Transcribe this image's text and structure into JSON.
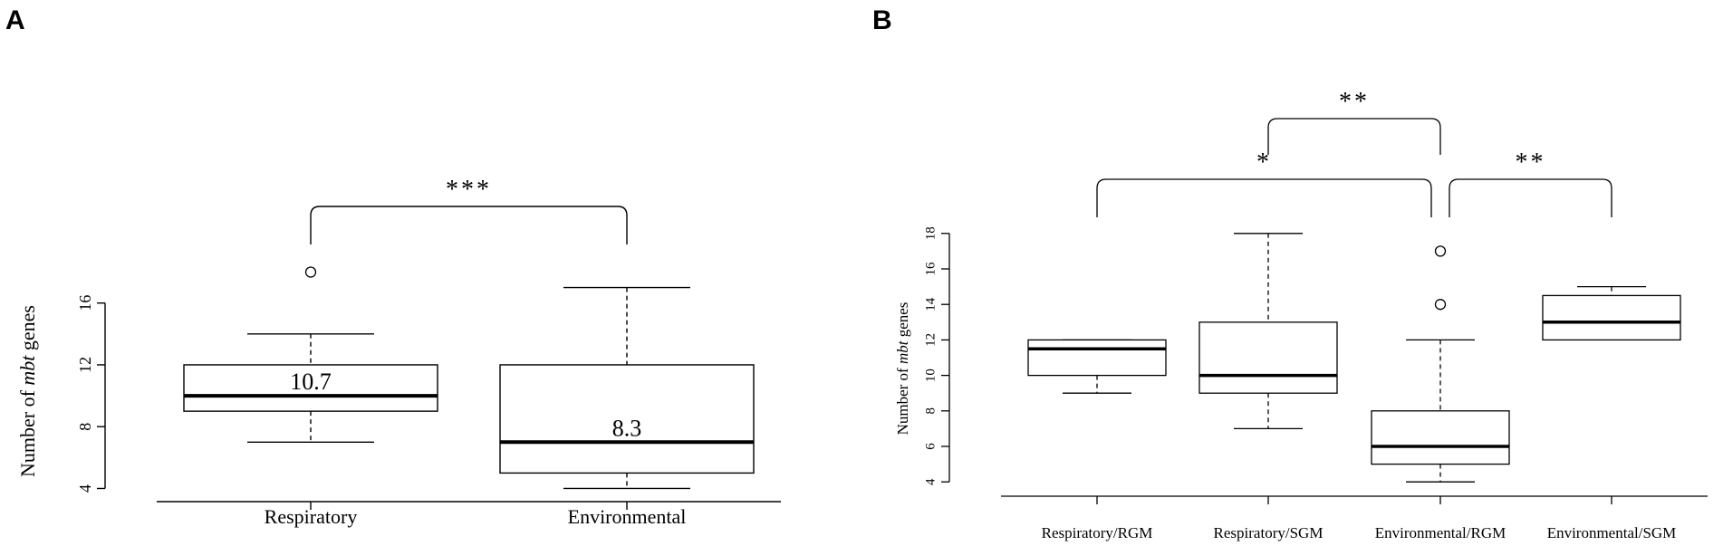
{
  "chart_data": [
    {
      "panel": "A",
      "type": "box",
      "ylabel": "Number of mbt genes",
      "ylabel_parts": [
        "Number of ",
        "mbt",
        " genes"
      ],
      "ylim": [
        3.5,
        18.5
      ],
      "yticks": [
        4,
        8,
        12,
        16
      ],
      "categories": [
        "Respiratory",
        "Environmental"
      ],
      "boxes": [
        {
          "whisker_low": 7,
          "q1": 9,
          "median": 10,
          "q3": 12,
          "whisker_high": 14,
          "outliers": [
            18
          ],
          "mean_label": "10.7"
        },
        {
          "whisker_low": 4,
          "q1": 5,
          "median": 7,
          "q3": 12,
          "whisker_high": 17,
          "outliers": [],
          "mean_label": "8.3"
        }
      ],
      "significance": [
        {
          "from": 0,
          "to": 1,
          "label": "***"
        }
      ]
    },
    {
      "panel": "B",
      "type": "box",
      "ylabel": "Number of mbt genes",
      "ylabel_parts": [
        "Number of ",
        "mbt",
        " genes"
      ],
      "ylim": [
        3.5,
        18.5
      ],
      "yticks": [
        4,
        6,
        8,
        10,
        12,
        14,
        16,
        18
      ],
      "categories": [
        "Respiratory/RGM",
        "Respiratory/SGM",
        "Environmental/RGM",
        "Environmental/SGM"
      ],
      "boxes": [
        {
          "whisker_low": 9,
          "q1": 10,
          "median": 11.5,
          "q3": 12,
          "whisker_high": 12,
          "outliers": []
        },
        {
          "whisker_low": 7,
          "q1": 9,
          "median": 10,
          "q3": 13,
          "whisker_high": 18,
          "outliers": []
        },
        {
          "whisker_low": 4,
          "q1": 5,
          "median": 6,
          "q3": 8,
          "whisker_high": 12,
          "outliers": [
            14,
            17
          ]
        },
        {
          "whisker_low": 12,
          "q1": 12,
          "median": 13,
          "q3": 14.5,
          "whisker_high": 15,
          "outliers": []
        }
      ],
      "significance": [
        {
          "from": 1,
          "to": 2,
          "label": "**"
        },
        {
          "from": 0,
          "to": 2,
          "label": "*"
        },
        {
          "from": 2,
          "to": 3,
          "label": "**"
        }
      ]
    }
  ]
}
